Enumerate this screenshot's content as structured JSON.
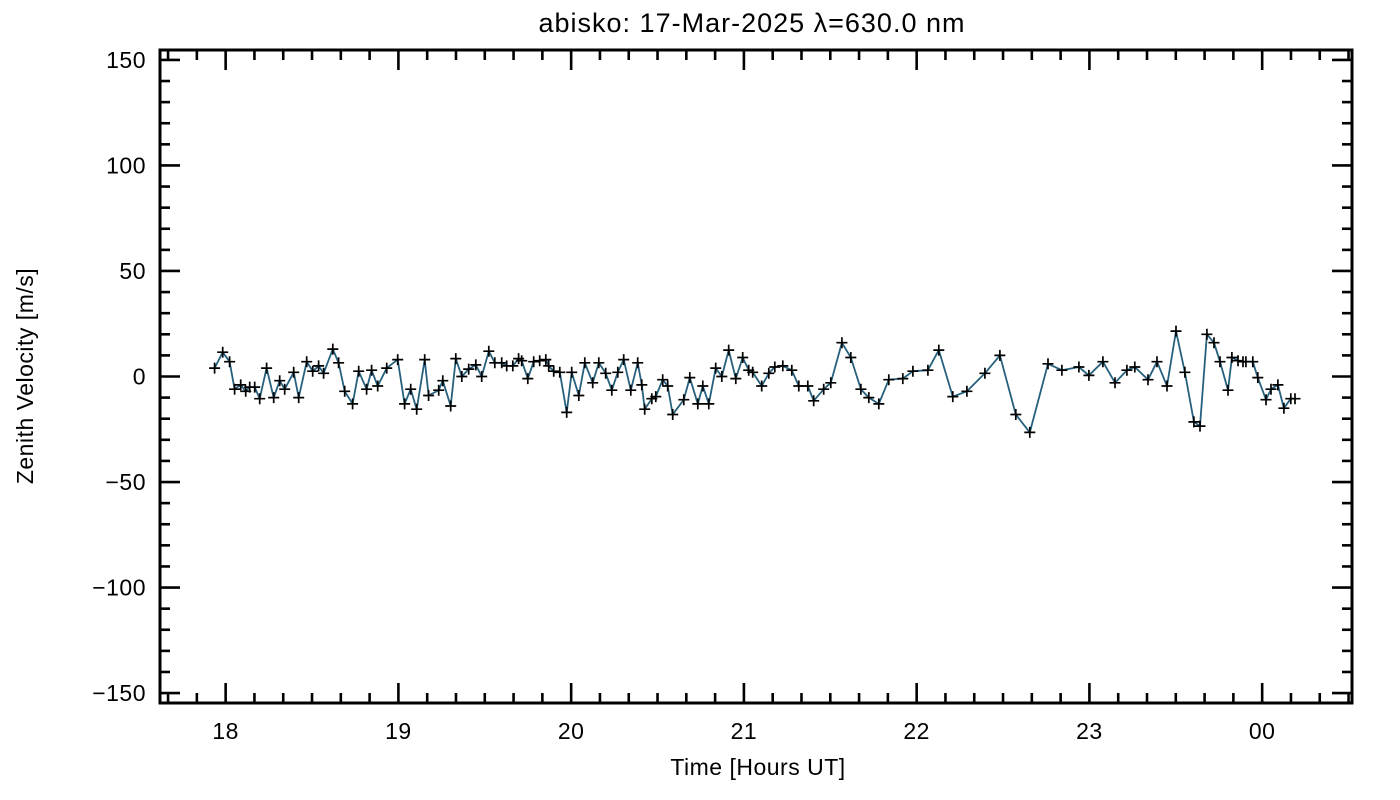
{
  "page": {
    "background_color": "#ffffff",
    "frame_color": "#000000",
    "text_color": "#000000"
  },
  "chart_data": {
    "type": "line",
    "title": "abisko: 17-Mar-2025 λ=630.0 nm",
    "xlabel": "Time [Hours UT]",
    "ylabel": "Zenith Velocity [m/s]",
    "xlim": [
      17.62,
      24.52
    ],
    "ylim": [
      -154.7,
      154.7
    ],
    "grid": false,
    "legend": null,
    "line_color": "#26607d",
    "marker": "plus",
    "marker_color": "#000000",
    "xticks": {
      "major": [
        {
          "value": 18,
          "label": "18"
        },
        {
          "value": 19,
          "label": "19"
        },
        {
          "value": 20,
          "label": "20"
        },
        {
          "value": 21,
          "label": "21"
        },
        {
          "value": 22,
          "label": "22"
        },
        {
          "value": 23,
          "label": "23"
        },
        {
          "value": 24,
          "label": "00"
        }
      ],
      "minor_per_hour": 6
    },
    "yticks": {
      "major": [
        {
          "value": -150,
          "label": "−150"
        },
        {
          "value": -100,
          "label": "−100"
        },
        {
          "value": -50,
          "label": "−50"
        },
        {
          "value": 0,
          "label": "0"
        },
        {
          "value": 50,
          "label": "50"
        },
        {
          "value": 100,
          "label": "100"
        },
        {
          "value": 150,
          "label": "150"
        }
      ],
      "minor_step": 10
    },
    "series": [
      {
        "name": "zenith velocity",
        "x": [
          17.936,
          17.983,
          18.023,
          18.052,
          18.087,
          18.116,
          18.139,
          18.168,
          18.197,
          18.237,
          18.278,
          18.313,
          18.342,
          18.394,
          18.423,
          18.469,
          18.504,
          18.538,
          18.567,
          18.62,
          18.654,
          18.689,
          18.735,
          18.77,
          18.816,
          18.845,
          18.88,
          18.932,
          18.996,
          19.036,
          19.071,
          19.106,
          19.152,
          19.175,
          19.233,
          19.257,
          19.303,
          19.332,
          19.367,
          19.407,
          19.448,
          19.482,
          19.523,
          19.558,
          19.598,
          19.627,
          19.662,
          19.696,
          19.714,
          19.749,
          19.783,
          19.818,
          19.853,
          19.87,
          19.899,
          19.934,
          19.974,
          20.003,
          20.044,
          20.079,
          20.125,
          20.16,
          20.2,
          20.235,
          20.27,
          20.304,
          20.345,
          20.385,
          20.409,
          20.426,
          20.467,
          20.49,
          20.53,
          20.559,
          20.588,
          20.652,
          20.687,
          20.733,
          20.762,
          20.797,
          20.837,
          20.872,
          20.912,
          20.953,
          20.993,
          21.028,
          21.051,
          21.103,
          21.144,
          21.179,
          21.225,
          21.277,
          21.318,
          21.37,
          21.404,
          21.462,
          21.503,
          21.567,
          21.619,
          21.677,
          21.723,
          21.781,
          21.839,
          21.92,
          21.978,
          22.065,
          22.128,
          22.209,
          22.291,
          22.395,
          22.482,
          22.574,
          22.655,
          22.76,
          22.841,
          22.939,
          22.997,
          23.078,
          23.148,
          23.217,
          23.263,
          23.339,
          23.391,
          23.449,
          23.501,
          23.553,
          23.605,
          23.64,
          23.68,
          23.721,
          23.756,
          23.802,
          23.825,
          23.86,
          23.889,
          23.906,
          23.946,
          23.975,
          24.022,
          24.051,
          24.091,
          24.126,
          24.166,
          24.19
        ],
        "y": [
          4,
          11.5,
          7,
          -6,
          -4,
          -7,
          -5,
          -5,
          -10.5,
          4,
          -10,
          -2,
          -6,
          2,
          -10,
          7,
          2.5,
          5,
          1.5,
          13,
          6.5,
          -7,
          -13,
          2.5,
          -6,
          3,
          -4.5,
          4,
          8,
          -13,
          -6,
          -15.5,
          8,
          -9,
          -6.5,
          -2,
          -14,
          8.5,
          0,
          3.5,
          5.5,
          0,
          12,
          6.5,
          6.5,
          5,
          5,
          8.5,
          7.5,
          -1,
          7,
          7.5,
          8,
          5,
          2.5,
          2,
          -17,
          2,
          -9,
          6.5,
          -3,
          6.5,
          1.5,
          -6.5,
          2,
          8,
          -6.5,
          6.5,
          -4,
          -15.5,
          -10.5,
          -9.5,
          -1.5,
          -4.5,
          -18,
          -11,
          -0.5,
          -13,
          -4.5,
          -13,
          4,
          0,
          12.5,
          -1,
          9,
          3,
          2,
          -4.5,
          1.5,
          4.5,
          5,
          3,
          -4.5,
          -4.5,
          -11.5,
          -6,
          -3,
          16,
          9,
          -6,
          -10,
          -13,
          -1.5,
          -1,
          2.5,
          3,
          12.5,
          -9.5,
          -7,
          1.5,
          10,
          -18,
          -26.5,
          6,
          3,
          4.5,
          0.5,
          7,
          -3,
          3,
          4.5,
          -1.5,
          7,
          -4.5,
          21.5,
          2,
          -21.5,
          -23.5,
          20,
          16,
          7,
          -6.5,
          9,
          7.5,
          7,
          7,
          7,
          -0.5,
          -11,
          -6,
          -4,
          -15,
          -10.5,
          -10.5
        ]
      }
    ]
  }
}
